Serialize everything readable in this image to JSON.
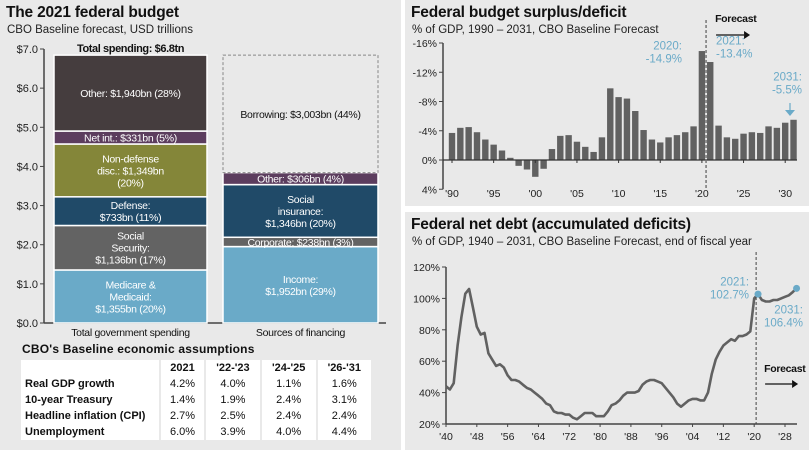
{
  "chart_data": [
    {
      "type": "bar",
      "subtype": "stacked",
      "title": "The 2021 federal budget",
      "subtitle": "CBO Baseline forecast, USD trillions",
      "ylabel": "",
      "ylim": [
        0,
        7
      ],
      "yticks": [
        "$0.0",
        "$1.0",
        "$2.0",
        "$3.0",
        "$4.0",
        "$5.0",
        "$6.0",
        "$7.0"
      ],
      "ytick_values": [
        0,
        1,
        2,
        3,
        4,
        5,
        6,
        7
      ],
      "categories": [
        "Total government spending",
        "Sources of financing"
      ],
      "annotation_top": "Total spending: $6.8tn",
      "stacks": [
        {
          "category": "Total government spending",
          "segments": [
            {
              "name": "Medicare & Medicaid",
              "label": [
                "Medicare &",
                "Medicaid:",
                "$1,355bn (20%)"
              ],
              "value": 1.355,
              "color": "#6aaac8",
              "text_color": "#ffffff"
            },
            {
              "name": "Social Security",
              "label": [
                "Social",
                "Security:",
                "$1,136bn (17%)"
              ],
              "value": 1.136,
              "color": "#636363",
              "text_color": "#ffffff"
            },
            {
              "name": "Defense",
              "label": [
                "Defense:",
                "$733bn (11%)"
              ],
              "value": 0.733,
              "color": "#204a68",
              "text_color": "#ffffff"
            },
            {
              "name": "Non-defense disc.",
              "label": [
                "Non-defense",
                "disc.: $1,349bn",
                "(20%)"
              ],
              "value": 1.349,
              "color": "#848639",
              "text_color": "#ffffff"
            },
            {
              "name": "Net int.",
              "label": [
                "Net int.: $331bn (5%)"
              ],
              "value": 0.331,
              "color": "#5c3d5e",
              "text_color": "#ffffff"
            },
            {
              "name": "Other",
              "label": [
                "Other: $1,940bn (28%)"
              ],
              "value": 1.94,
              "color": "#453d3e",
              "text_color": "#ffffff"
            }
          ]
        },
        {
          "category": "Sources of financing",
          "segments": [
            {
              "name": "Income",
              "label": [
                "Income:",
                "$1,952bn (29%)"
              ],
              "value": 1.952,
              "color": "#6aaac8",
              "text_color": "#ffffff"
            },
            {
              "name": "Corporate",
              "label": [
                "Corporate: $238bn (3%)"
              ],
              "value": 0.238,
              "color": "#636363",
              "text_color": "#ffffff"
            },
            {
              "name": "Social insurance",
              "label": [
                "Social",
                "insurance:",
                "$1,346bn (20%)"
              ],
              "value": 1.346,
              "color": "#204a68",
              "text_color": "#ffffff"
            },
            {
              "name": "Other",
              "label": [
                "Other: $306bn (4%)"
              ],
              "value": 0.306,
              "color": "#5c3d5e",
              "text_color": "#ffffff"
            },
            {
              "name": "Borrowing",
              "label": [
                "Borrowing: $3,003bn (44%)"
              ],
              "value": 3.003,
              "color": "none",
              "dashed": true,
              "text_color": "#111111"
            }
          ]
        }
      ]
    },
    {
      "type": "bar",
      "title": "Federal budget surplus/deficit",
      "subtitle": "% of GDP, 1990 – 2031, CBO Baseline Forecast",
      "ylim": [
        4,
        -16
      ],
      "yaxis_inverted": true,
      "yticks": [
        "-16%",
        "-12%",
        "-8%",
        "-4%",
        "0%",
        "4%"
      ],
      "ytick_values": [
        -16,
        -12,
        -8,
        -4,
        0,
        4
      ],
      "xticks": [
        "'90",
        "'95",
        "'00",
        "'05",
        "'10",
        "'15",
        "'20",
        "'25",
        "'30"
      ],
      "xtick_values": [
        1990,
        1995,
        2000,
        2005,
        2010,
        2015,
        2020,
        2025,
        2030
      ],
      "x": [
        1990,
        1991,
        1992,
        1993,
        1994,
        1995,
        1996,
        1997,
        1998,
        1999,
        2000,
        2001,
        2002,
        2003,
        2004,
        2005,
        2006,
        2007,
        2008,
        2009,
        2010,
        2011,
        2012,
        2013,
        2014,
        2015,
        2016,
        2017,
        2018,
        2019,
        2020,
        2021,
        2022,
        2023,
        2024,
        2025,
        2026,
        2027,
        2028,
        2029,
        2030,
        2031
      ],
      "values": [
        -3.7,
        -4.4,
        -4.5,
        -3.8,
        -2.8,
        -2.1,
        -1.3,
        -0.3,
        0.8,
        1.3,
        2.3,
        1.2,
        -1.5,
        -3.3,
        -3.4,
        -2.5,
        -1.8,
        -1.1,
        -3.1,
        -9.8,
        -8.6,
        -8.4,
        -6.7,
        -4.1,
        -2.8,
        -2.4,
        -3.1,
        -3.4,
        -3.8,
        -4.6,
        -14.9,
        -13.4,
        -4.7,
        -3.1,
        -2.9,
        -3.6,
        -3.8,
        -3.7,
        -4.6,
        -4.4,
        -5.1,
        -5.5
      ],
      "bar_color": "#616161",
      "forecast_start": 2021,
      "forecast_label": "Forecast",
      "annotations": [
        {
          "label": [
            "2020:",
            "-14.9%"
          ],
          "x": 2020,
          "y": -14.9,
          "color": "#6aaac8"
        },
        {
          "label": [
            "2021:",
            "-13.4%"
          ],
          "x": 2021,
          "y": -13.4,
          "color": "#6aaac8"
        },
        {
          "label": [
            "2031:",
            "-5.5%"
          ],
          "x": 2031,
          "y": -5.5,
          "color": "#6aaac8"
        }
      ]
    },
    {
      "type": "line",
      "title": "Federal net debt (accumulated deficits)",
      "subtitle": "% of GDP, 1940 – 2031, CBO Baseline Forecast, end of fiscal year",
      "ylim": [
        20,
        120
      ],
      "yticks": [
        "20%",
        "40%",
        "60%",
        "80%",
        "100%",
        "120%"
      ],
      "ytick_values": [
        20,
        40,
        60,
        80,
        100,
        120
      ],
      "xlim": [
        1940,
        2032
      ],
      "xticks": [
        "'40",
        "'48",
        "'56",
        "'64",
        "'72",
        "'80",
        "'88",
        "'96",
        "'04",
        "'12",
        "'20",
        "'28"
      ],
      "xtick_values": [
        1940,
        1948,
        1956,
        1964,
        1972,
        1980,
        1988,
        1996,
        2004,
        2012,
        2020,
        2028
      ],
      "x": [
        1940,
        1941,
        1942,
        1943,
        1944,
        1945,
        1946,
        1947,
        1948,
        1949,
        1950,
        1951,
        1952,
        1953,
        1954,
        1955,
        1956,
        1957,
        1958,
        1959,
        1960,
        1961,
        1962,
        1963,
        1964,
        1965,
        1966,
        1967,
        1968,
        1969,
        1970,
        1971,
        1972,
        1973,
        1974,
        1975,
        1976,
        1977,
        1978,
        1979,
        1980,
        1981,
        1982,
        1983,
        1984,
        1985,
        1986,
        1987,
        1988,
        1989,
        1990,
        1991,
        1992,
        1993,
        1994,
        1995,
        1996,
        1997,
        1998,
        1999,
        2000,
        2001,
        2002,
        2003,
        2004,
        2005,
        2006,
        2007,
        2008,
        2009,
        2010,
        2011,
        2012,
        2013,
        2014,
        2015,
        2016,
        2017,
        2018,
        2019,
        2020,
        2021,
        2022,
        2023,
        2024,
        2025,
        2026,
        2027,
        2028,
        2029,
        2030,
        2031
      ],
      "values": [
        44,
        42,
        46,
        70,
        88,
        103,
        106,
        94,
        82,
        77,
        78,
        65,
        61,
        57,
        58,
        56,
        51,
        48,
        48,
        47,
        45,
        43,
        42,
        40,
        38,
        36,
        33,
        32,
        28,
        27,
        27,
        26,
        26,
        24,
        23,
        25,
        27,
        27,
        27,
        25,
        25,
        25,
        28,
        32,
        33,
        35,
        38,
        40,
        40,
        40,
        41,
        45,
        47,
        48,
        48,
        47,
        46,
        43,
        40,
        37,
        33,
        31,
        33,
        35,
        36,
        36,
        35,
        35,
        40,
        52,
        61,
        66,
        70,
        72,
        74,
        73,
        76,
        76,
        77,
        79,
        100,
        102.7,
        99,
        98,
        98,
        99,
        99,
        100,
        101,
        102,
        104,
        106.4
      ],
      "line_color": "#616161",
      "forecast_start": 2020.5,
      "forecast_label": "Forecast",
      "annotations": [
        {
          "label": [
            "2021:",
            "102.7%"
          ],
          "x": 2021,
          "y": 102.7,
          "color": "#6aaac8"
        },
        {
          "label": [
            "2031:",
            "106.4%"
          ],
          "x": 2031,
          "y": 106.4,
          "color": "#6aaac8"
        }
      ]
    }
  ],
  "budget_panel": {
    "title": "The 2021 federal budget",
    "subtitle": "CBO Baseline forecast, USD trillions"
  },
  "deficit_panel": {
    "title": "Federal budget surplus/deficit",
    "subtitle": "% of GDP, 1990 – 2031, CBO Baseline Forecast"
  },
  "debt_panel": {
    "title": "Federal net debt (accumulated deficits)",
    "subtitle": "% of GDP, 1940 – 2031, CBO Baseline Forecast, end of fiscal year"
  },
  "assumptions": {
    "title": "CBO's Baseline economic assumptions",
    "columns": [
      "",
      "2021",
      "'22-'23",
      "'24-'25",
      "'26-'31"
    ],
    "rows": [
      {
        "label": "Real GDP growth",
        "values": [
          "4.2%",
          "4.0%",
          "1.1%",
          "1.6%"
        ]
      },
      {
        "label": "10-year Treasury",
        "values": [
          "1.4%",
          "1.9%",
          "2.4%",
          "3.1%"
        ]
      },
      {
        "label": "Headline inflation (CPI)",
        "values": [
          "2.7%",
          "2.5%",
          "2.4%",
          "2.4%"
        ]
      },
      {
        "label": "Unemployment",
        "values": [
          "6.0%",
          "3.9%",
          "4.0%",
          "4.4%"
        ]
      }
    ]
  }
}
